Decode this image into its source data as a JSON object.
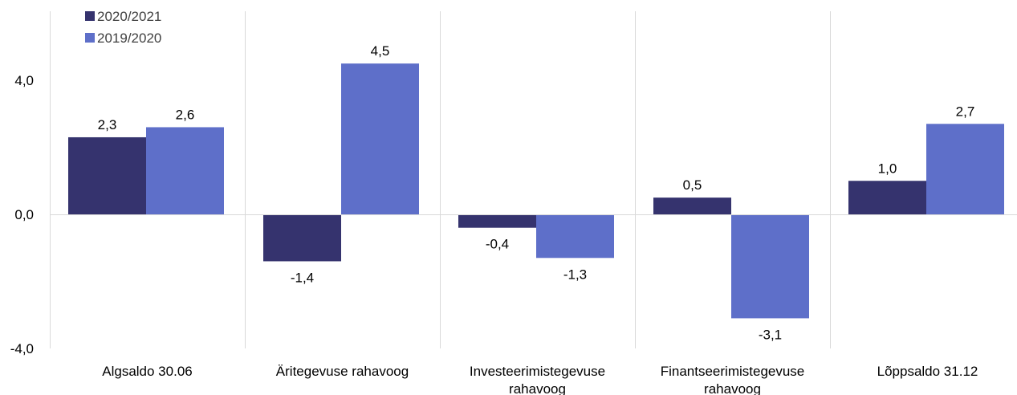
{
  "chart_data": {
    "type": "bar",
    "categories": [
      [
        "Algsaldo 30.06"
      ],
      [
        "Äritegevuse rahavoog"
      ],
      [
        "Investeerimistegevuse",
        "rahavoog"
      ],
      [
        "Finantseerimistegevuse",
        "rahavoog"
      ],
      [
        "Lõppsaldo 31.12"
      ]
    ],
    "series": [
      {
        "name": "2020/2021",
        "color": "#35336e",
        "values": [
          2.3,
          -1.4,
          -0.4,
          0.5,
          1.0
        ],
        "labels": [
          "2,3",
          "-1,4",
          "-0,4",
          "0,5",
          "1,0"
        ]
      },
      {
        "name": "2019/2020",
        "color": "#5e6fc9",
        "values": [
          2.6,
          4.5,
          -1.3,
          -3.1,
          2.7
        ],
        "labels": [
          "2,6",
          "4,5",
          "-1,3",
          "-3,1",
          "2,7"
        ]
      }
    ],
    "ylim": [
      -4,
      4
    ],
    "yticks": [
      4,
      0,
      -4
    ],
    "ytick_labels": [
      "4,0",
      "0,0",
      "-4,0"
    ],
    "title": "",
    "xlabel": "",
    "ylabel": "",
    "legend_position": "top-left",
    "grid": "vertical category separators"
  }
}
